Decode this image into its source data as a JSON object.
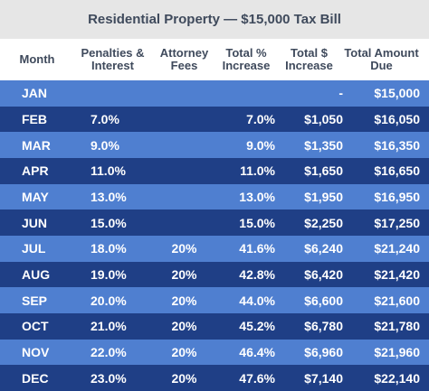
{
  "title": "Residential Property — $15,000 Tax Bill",
  "columns": {
    "month": "Month",
    "penalties": "Penalties & Interest",
    "attorney": "Attorney Fees",
    "pct": "Total % Increase",
    "usd": "Total $ Increase",
    "due": "Total Amount Due"
  },
  "rows": [
    {
      "month": "JAN",
      "penalties": "",
      "attorney": "",
      "pct": "",
      "usd": "-",
      "due": "$15,000"
    },
    {
      "month": "FEB",
      "penalties": "7.0%",
      "attorney": "",
      "pct": "7.0%",
      "usd": "$1,050",
      "due": "$16,050"
    },
    {
      "month": "MAR",
      "penalties": "9.0%",
      "attorney": "",
      "pct": "9.0%",
      "usd": "$1,350",
      "due": "$16,350"
    },
    {
      "month": "APR",
      "penalties": "11.0%",
      "attorney": "",
      "pct": "11.0%",
      "usd": "$1,650",
      "due": "$16,650"
    },
    {
      "month": "MAY",
      "penalties": "13.0%",
      "attorney": "",
      "pct": "13.0%",
      "usd": "$1,950",
      "due": "$16,950"
    },
    {
      "month": "JUN",
      "penalties": "15.0%",
      "attorney": "",
      "pct": "15.0%",
      "usd": "$2,250",
      "due": "$17,250"
    },
    {
      "month": "JUL",
      "penalties": "18.0%",
      "attorney": "20%",
      "pct": "41.6%",
      "usd": "$6,240",
      "due": "$21,240"
    },
    {
      "month": "AUG",
      "penalties": "19.0%",
      "attorney": "20%",
      "pct": "42.8%",
      "usd": "$6,420",
      "due": "$21,420"
    },
    {
      "month": "SEP",
      "penalties": "20.0%",
      "attorney": "20%",
      "pct": "44.0%",
      "usd": "$6,600",
      "due": "$21,600"
    },
    {
      "month": "OCT",
      "penalties": "21.0%",
      "attorney": "20%",
      "pct": "45.2%",
      "usd": "$6,780",
      "due": "$21,780"
    },
    {
      "month": "NOV",
      "penalties": "22.0%",
      "attorney": "20%",
      "pct": "46.4%",
      "usd": "$6,960",
      "due": "$21,960"
    },
    {
      "month": "DEC",
      "penalties": "23.0%",
      "attorney": "20%",
      "pct": "47.6%",
      "usd": "$7,140",
      "due": "$22,140"
    }
  ]
}
